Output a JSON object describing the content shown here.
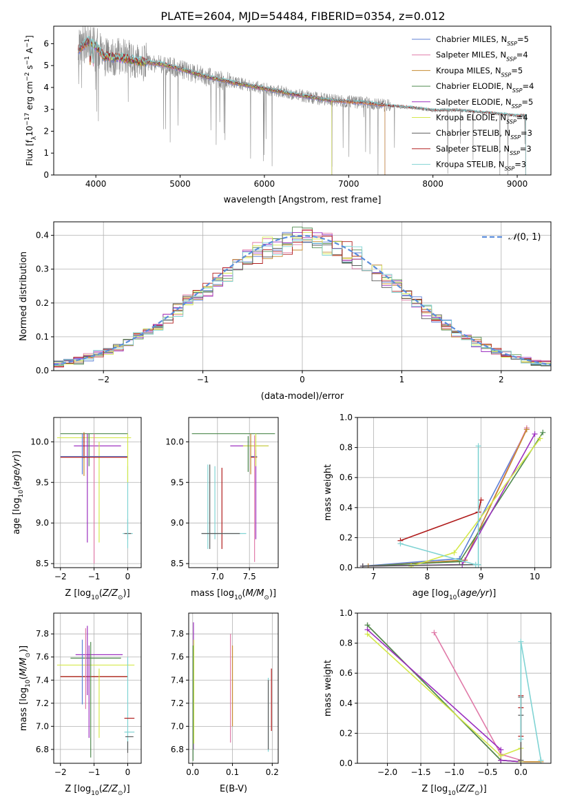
{
  "figure_title": "PLATE=2604, MJD=54484, FIBERID=0354, z=0.012",
  "colors": {
    "chabrier_miles": "#5b7fd6",
    "salpeter_miles": "#e07aa8",
    "kroupa_miles": "#c58a2e",
    "chabrier_elodie": "#4f8a4f",
    "salpeter_elodie": "#9b2fbf",
    "kroupa_elodie": "#d4e84a",
    "chabrier_stelib": "#5a5a5a",
    "salpeter_stelib": "#b01b1b",
    "kroupa_stelib": "#7fd3d3",
    "data_spectrum": "#8a8a8a",
    "gaussian": "#5b8ddb",
    "grid": "#b0b0b0"
  },
  "chart_data": [
    {
      "id": "spectrum",
      "type": "line",
      "xlabel": "wavelength [Angstrom, rest frame]",
      "ylabel": "Flux [f_λ10^-17 erg cm^-2 s^-1 A^-1]",
      "xlim": [
        3500,
        9400
      ],
      "ylim": [
        0,
        6.8
      ],
      "xticks": [
        4000,
        5000,
        6000,
        7000,
        8000,
        9000
      ],
      "yticks": [
        0,
        1,
        2,
        3,
        4,
        5,
        6
      ],
      "grid": false,
      "legend_position": "top-right",
      "legend": [
        "Chabrier MILES, N_SSP=5",
        "Salpeter MILES, N_SSP=4",
        "Kroupa MILES, N_SSP=5",
        "Chabrier ELODIE, N_SSP=4",
        "Salpeter ELODIE, N_SSP=5",
        "Kroupa ELODIE, N_SSP=4",
        "Chabrier STELIB, N_SSP=3",
        "Salpeter STELIB, N_SSP=3",
        "Kroupa STELIB, N_SSP=3"
      ],
      "continuum": {
        "x": [
          3790,
          3900,
          4000,
          4100,
          4300,
          4500,
          4800,
          5000,
          5300,
          5600,
          6000,
          6400,
          6800,
          7200,
          7500,
          7800,
          8000,
          8300,
          8600,
          9000,
          9100
        ],
        "y": [
          5.7,
          6.1,
          5.9,
          5.4,
          5.35,
          5.2,
          5.05,
          4.85,
          4.5,
          4.25,
          3.95,
          3.65,
          3.4,
          3.3,
          3.15,
          3.05,
          2.95,
          2.95,
          2.85,
          2.7,
          2.7
        ]
      },
      "model_ranges": [
        {
          "series": "Chabrier MILES",
          "x": [
            3790,
            7430
          ]
        },
        {
          "series": "Salpeter MILES",
          "x": [
            3790,
            7430
          ]
        },
        {
          "series": "Kroupa MILES",
          "x": [
            3790,
            7430
          ]
        },
        {
          "series": "Chabrier ELODIE",
          "x": [
            3890,
            6800
          ]
        },
        {
          "series": "Salpeter ELODIE",
          "x": [
            3890,
            6800
          ]
        },
        {
          "series": "Kroupa ELODIE",
          "x": [
            3890,
            6800
          ]
        },
        {
          "series": "Chabrier STELIB",
          "x": [
            3790,
            9100
          ]
        },
        {
          "series": "Salpeter STELIB",
          "x": [
            3790,
            9100
          ]
        },
        {
          "series": "Kroupa STELIB",
          "x": [
            3790,
            9100
          ]
        }
      ]
    },
    {
      "id": "residuals",
      "type": "histogram",
      "xlabel": "(data-model)/error",
      "ylabel": "Normed distribution",
      "xlim": [
        -2.5,
        2.5
      ],
      "ylim": [
        0,
        0.44
      ],
      "xticks": [
        -2,
        -1,
        0,
        1,
        2
      ],
      "yticks": [
        0.0,
        0.1,
        0.2,
        0.3,
        0.4
      ],
      "grid": true,
      "legend_position": "top-right",
      "legend": [
        "N(0,1)"
      ],
      "bin_width": 0.1,
      "bin_start": -2.5,
      "gaussian_mean": 0,
      "gaussian_sigma": 1
    },
    {
      "id": "age_vs_Z",
      "type": "errorbar",
      "xlabel": "Z [log10(Z/Z⊙)]",
      "ylabel": "age [log10(age/yr)]",
      "xlim": [
        -2.2,
        0.4
      ],
      "ylim": [
        8.45,
        10.3
      ],
      "xticks": [
        -2,
        -1,
        0
      ],
      "yticks": [
        8.5,
        9.0,
        9.5,
        10.0
      ],
      "grid": true,
      "points": [
        {
          "s": "chabrier_elodie",
          "x": -1.0,
          "xerr": 1.0,
          "y": 10.1,
          "yerr": 0.0
        },
        {
          "s": "salpeter_elodie",
          "x": -0.9,
          "xerr": 0.7,
          "y": 9.95,
          "yerr": 0.0
        },
        {
          "s": "kroupa_elodie",
          "x": -1.0,
          "xerr": 1.1,
          "y": 10.05,
          "yerr": 0.0
        },
        {
          "s": "chabrier_miles",
          "x": -1.35,
          "xerr": 0.0,
          "y": 9.85,
          "yerr": 0.25
        },
        {
          "s": "kroupa_miles",
          "x": -1.3,
          "xerr": 0.0,
          "y": 9.85,
          "yerr": 0.27
        },
        {
          "s": "salpeter_elodie",
          "x": -1.2,
          "xerr": 0.0,
          "y": 9.43,
          "yerr": 0.67
        },
        {
          "s": "salpeter_miles",
          "x": -1.0,
          "xerr": 0.0,
          "y": 9.3,
          "yerr": 0.8
        },
        {
          "s": "kroupa_elodie",
          "x": -0.85,
          "xerr": 0.0,
          "y": 9.38,
          "yerr": 0.62
        },
        {
          "s": "chabrier_elodie",
          "x": -1.15,
          "xerr": 0.0,
          "y": 9.9,
          "yerr": 0.2
        },
        {
          "s": "salpeter_stelib",
          "x": -1.3,
          "xerr": 0.0,
          "y": 9.95,
          "yerr": 0.15
        },
        {
          "s": "chabrier_miles",
          "x": -1.0,
          "xerr": 1.0,
          "y": 9.82,
          "yerr": 0.0
        },
        {
          "s": "salpeter_stelib",
          "x": -1.0,
          "xerr": 1.0,
          "y": 9.81,
          "yerr": 0.0
        },
        {
          "s": "kroupa_stelib",
          "x": 0.0,
          "xerr": 0.0,
          "y": 9.25,
          "yerr": 0.45
        },
        {
          "s": "kroupa_stelib",
          "x": 0.0,
          "xerr": 0.15,
          "y": 8.87,
          "yerr": 0.0
        },
        {
          "s": "chabrier_stelib",
          "x": 0.0,
          "xerr": 0.1,
          "y": 8.87,
          "yerr": 0.0
        },
        {
          "s": "kroupa_stelib",
          "x": 0.0,
          "xerr": 0.0,
          "y": 8.87,
          "yerr": 0.18
        },
        {
          "s": "kroupa_elodie",
          "x": 0.0,
          "xerr": 0.0,
          "y": 9.8,
          "yerr": 0.3
        }
      ]
    },
    {
      "id": "age_vs_mass",
      "type": "errorbar",
      "xlabel": "mass [log10(M/M⊙)]",
      "ylabel": "",
      "xlim": [
        6.55,
        7.95
      ],
      "ylim": [
        8.45,
        10.3
      ],
      "xticks": [
        7.0,
        7.5
      ],
      "yticks": [
        8.5,
        9.0,
        9.5,
        10.0
      ],
      "grid": true,
      "points": [
        {
          "s": "chabrier_elodie",
          "x": 7.25,
          "xerr": 0.65,
          "y": 10.1,
          "yerr": 0.0
        },
        {
          "s": "salpeter_elodie",
          "x": 7.5,
          "xerr": 0.3,
          "y": 9.95,
          "yerr": 0.0
        },
        {
          "s": "kroupa_elodie",
          "x": 7.6,
          "xerr": 0.2,
          "y": 9.95,
          "yerr": 0.0
        },
        {
          "s": "chabrier_miles",
          "x": 7.57,
          "xerr": 0.05,
          "y": 9.82,
          "yerr": 0.0
        },
        {
          "s": "salpeter_stelib",
          "x": 7.57,
          "xerr": 0.05,
          "y": 9.81,
          "yerr": 0.0
        },
        {
          "s": "kroupa_miles",
          "x": 7.52,
          "xerr": 0.0,
          "y": 9.85,
          "yerr": 0.25
        },
        {
          "s": "chabrier_elodie",
          "x": 7.48,
          "xerr": 0.0,
          "y": 9.85,
          "yerr": 0.22
        },
        {
          "s": "salpeter_elodie",
          "x": 7.6,
          "xerr": 0.0,
          "y": 9.35,
          "yerr": 0.55
        },
        {
          "s": "salpeter_miles",
          "x": 7.58,
          "xerr": 0.0,
          "y": 9.3,
          "yerr": 0.78
        },
        {
          "s": "kroupa_elodie",
          "x": 7.6,
          "xerr": 0.0,
          "y": 9.9,
          "yerr": 0.2
        },
        {
          "s": "kroupa_stelib",
          "x": 6.85,
          "xerr": 0.0,
          "y": 9.2,
          "yerr": 0.52
        },
        {
          "s": "chabrier_stelib",
          "x": 6.88,
          "xerr": 0.0,
          "y": 9.2,
          "yerr": 0.52
        },
        {
          "s": "kroupa_stelib",
          "x": 6.96,
          "xerr": 0.0,
          "y": 9.25,
          "yerr": 0.45
        },
        {
          "s": "salpeter_stelib",
          "x": 7.07,
          "xerr": 0.0,
          "y": 9.18,
          "yerr": 0.5
        },
        {
          "s": "kroupa_stelib",
          "x": 7.1,
          "xerr": 0.35,
          "y": 8.87,
          "yerr": 0.0
        },
        {
          "s": "chabrier_stelib",
          "x": 7.05,
          "xerr": 0.3,
          "y": 8.87,
          "yerr": 0.0
        }
      ]
    },
    {
      "id": "weight_vs_age",
      "type": "line",
      "xlabel": "age [log10(age/yr)]",
      "ylabel": "mass weight",
      "xlim": [
        6.7,
        10.3
      ],
      "ylim": [
        0,
        1.0
      ],
      "xticks": [
        7,
        8,
        9,
        10
      ],
      "yticks": [
        0.0,
        0.2,
        0.4,
        0.6,
        0.8,
        1.0
      ],
      "grid": true,
      "series": [
        {
          "s": "chabrier_miles",
          "x": [
            6.8,
            8.6,
            9.85
          ],
          "y": [
            0.01,
            0.06,
            0.92
          ]
        },
        {
          "s": "salpeter_miles",
          "x": [
            6.9,
            8.7,
            9.85
          ],
          "y": [
            0.01,
            0.05,
            0.93
          ]
        },
        {
          "s": "kroupa_miles",
          "x": [
            6.9,
            8.7,
            9.85
          ],
          "y": [
            0.01,
            0.05,
            0.92
          ]
        },
        {
          "s": "chabrier_elodie",
          "x": [
            6.8,
            8.6,
            10.15
          ],
          "y": [
            0.01,
            0.04,
            0.9
          ]
        },
        {
          "s": "salpeter_elodie",
          "x": [
            6.8,
            8.65,
            10.0
          ],
          "y": [
            0.01,
            0.02,
            0.89
          ]
        },
        {
          "s": "kroupa_elodie",
          "x": [
            7.7,
            8.5,
            10.1
          ],
          "y": [
            0.01,
            0.1,
            0.86
          ]
        },
        {
          "s": "chabrier_stelib",
          "x": [
            6.8,
            8.95
          ],
          "y": [
            0.01,
            0.02
          ]
        },
        {
          "s": "salpeter_stelib",
          "x": [
            7.5,
            8.95,
            9.0
          ],
          "y": [
            0.18,
            0.37,
            0.45
          ]
        },
        {
          "s": "kroupa_stelib",
          "x": [
            7.5,
            8.9,
            8.95,
            8.95
          ],
          "y": [
            0.16,
            0.02,
            0.02,
            0.81
          ]
        }
      ]
    },
    {
      "id": "mass_vs_Z",
      "type": "errorbar",
      "xlabel": "Z [log10(Z/Z⊙)]",
      "ylabel": "mass [log10(M/M⊙)]",
      "xlim": [
        -2.2,
        0.4
      ],
      "ylim": [
        6.68,
        7.98
      ],
      "xticks": [
        -2,
        -1,
        0
      ],
      "yticks": [
        6.8,
        7.0,
        7.2,
        7.4,
        7.6,
        7.8
      ],
      "grid": true,
      "points": [
        {
          "s": "kroupa_elodie",
          "x": -0.95,
          "xerr": 1.15,
          "y": 7.53,
          "yerr": 0.0
        },
        {
          "s": "chabrier_elodie",
          "x": -0.95,
          "xerr": 0.75,
          "y": 7.59,
          "yerr": 0.0
        },
        {
          "s": "salpeter_elodie",
          "x": -0.85,
          "xerr": 0.7,
          "y": 7.62,
          "yerr": 0.0
        },
        {
          "s": "chabrier_miles",
          "x": -1.0,
          "xerr": 1.0,
          "y": 7.43,
          "yerr": 0.0
        },
        {
          "s": "kroupa_miles",
          "x": -1.0,
          "xerr": 1.0,
          "y": 7.43,
          "yerr": 0.0
        },
        {
          "s": "salpeter_stelib",
          "x": -1.0,
          "xerr": 1.0,
          "y": 7.43,
          "yerr": 0.0
        },
        {
          "s": "salpeter_elodie",
          "x": -1.2,
          "xerr": 0.0,
          "y": 7.57,
          "yerr": 0.3
        },
        {
          "s": "salpeter_miles",
          "x": -1.25,
          "xerr": 0.0,
          "y": 7.5,
          "yerr": 0.35
        },
        {
          "s": "chabrier_miles",
          "x": -1.35,
          "xerr": 0.0,
          "y": 7.47,
          "yerr": 0.28
        },
        {
          "s": "chabrier_elodie",
          "x": -1.1,
          "xerr": 0.0,
          "y": 7.23,
          "yerr": 0.5
        },
        {
          "s": "salpeter_elodie",
          "x": -1.15,
          "xerr": 0.0,
          "y": 7.3,
          "yerr": 0.4
        },
        {
          "s": "kroupa_elodie",
          "x": -0.85,
          "xerr": 0.0,
          "y": 7.2,
          "yerr": 0.3
        },
        {
          "s": "kroupa_stelib",
          "x": 0.0,
          "xerr": 0.0,
          "y": 7.2,
          "yerr": 0.4
        },
        {
          "s": "salpeter_stelib",
          "x": 0.05,
          "xerr": 0.15,
          "y": 7.07,
          "yerr": 0.0
        },
        {
          "s": "kroupa_stelib",
          "x": 0.05,
          "xerr": 0.15,
          "y": 6.95,
          "yerr": 0.0
        },
        {
          "s": "chabrier_stelib",
          "x": 0.05,
          "xerr": 0.12,
          "y": 6.91,
          "yerr": 0.0
        },
        {
          "s": "chabrier_stelib",
          "x": 0.0,
          "xerr": 0.0,
          "y": 6.82,
          "yerr": 0.05
        }
      ]
    },
    {
      "id": "mass_vs_ebv",
      "type": "errorbar",
      "xlabel": "E(B-V)",
      "ylabel": "",
      "xlim": [
        -0.01,
        0.215
      ],
      "ylim": [
        6.68,
        7.98
      ],
      "xticks": [
        0.0,
        0.1,
        0.2
      ],
      "yticks": [
        6.8,
        7.0,
        7.2,
        7.4,
        7.6,
        7.8
      ],
      "grid": true,
      "points": [
        {
          "s": "salpeter_elodie",
          "x": 0.002,
          "xerr": 0.0,
          "y": 7.35,
          "yerr": 0.55
        },
        {
          "s": "kroupa_elodie",
          "x": 0.003,
          "xerr": 0.0,
          "y": 7.3,
          "yerr": 0.45
        },
        {
          "s": "chabrier_elodie",
          "x": 0.001,
          "xerr": 0.0,
          "y": 7.2,
          "yerr": 0.5
        },
        {
          "s": "salpeter_miles",
          "x": 0.095,
          "xerr": 0.0,
          "y": 7.33,
          "yerr": 0.47
        },
        {
          "s": "kroupa_miles",
          "x": 0.1,
          "xerr": 0.0,
          "y": 7.35,
          "yerr": 0.35
        },
        {
          "s": "kroupa_stelib",
          "x": 0.19,
          "xerr": 0.0,
          "y": 7.1,
          "yerr": 0.32
        },
        {
          "s": "chabrier_stelib",
          "x": 0.19,
          "xerr": 0.0,
          "y": 7.1,
          "yerr": 0.3
        },
        {
          "s": "salpeter_stelib",
          "x": 0.198,
          "xerr": 0.0,
          "y": 7.23,
          "yerr": 0.27
        }
      ]
    },
    {
      "id": "weight_vs_Z",
      "type": "line",
      "xlabel": "Z [log10(Z/Z⊙)]",
      "ylabel": "mass weight",
      "xlim": [
        -2.45,
        0.45
      ],
      "ylim": [
        0,
        1.0
      ],
      "xticks": [
        -2.0,
        -1.5,
        -1.0,
        -0.5,
        0.0
      ],
      "yticks": [
        0.0,
        0.2,
        0.4,
        0.6,
        0.8,
        1.0
      ],
      "grid": true,
      "series": [
        {
          "s": "chabrier_miles",
          "x": [
            -2.3,
            -0.3,
            0.0,
            0.0,
            0.0
          ],
          "y": [
            0.92,
            0.02,
            0.01,
            0.01,
            0.01
          ]
        },
        {
          "s": "salpeter_miles",
          "x": [
            -1.3,
            -0.3,
            0.0,
            0.0
          ],
          "y": [
            0.87,
            0.06,
            0.02,
            0.01
          ]
        },
        {
          "s": "kroupa_miles",
          "x": [
            -2.3,
            -0.3,
            0.0,
            0.3
          ],
          "y": [
            0.92,
            0.02,
            0.01,
            0.01
          ]
        },
        {
          "s": "chabrier_elodie",
          "x": [
            -2.3,
            -0.3,
            0.0,
            0.0
          ],
          "y": [
            0.92,
            0.02,
            0.01,
            0.01
          ]
        },
        {
          "s": "salpeter_elodie",
          "x": [
            -2.3,
            -0.3,
            -0.3,
            0.0,
            0.0
          ],
          "y": [
            0.89,
            0.09,
            0.02,
            0.01,
            0.01
          ]
        },
        {
          "s": "kroupa_elodie",
          "x": [
            -2.3,
            -0.3,
            0.0,
            0.0
          ],
          "y": [
            0.86,
            0.05,
            0.1,
            0.01
          ]
        },
        {
          "s": "chabrier_stelib",
          "x": [
            0.0,
            0.0,
            0.0
          ],
          "y": [
            0.44,
            0.32,
            0.02
          ]
        },
        {
          "s": "salpeter_stelib",
          "x": [
            0.0,
            0.0,
            0.0
          ],
          "y": [
            0.45,
            0.37,
            0.18
          ]
        },
        {
          "s": "kroupa_stelib",
          "x": [
            0.0,
            0.0,
            0.3
          ],
          "y": [
            0.16,
            0.81,
            0.02
          ]
        }
      ]
    }
  ]
}
